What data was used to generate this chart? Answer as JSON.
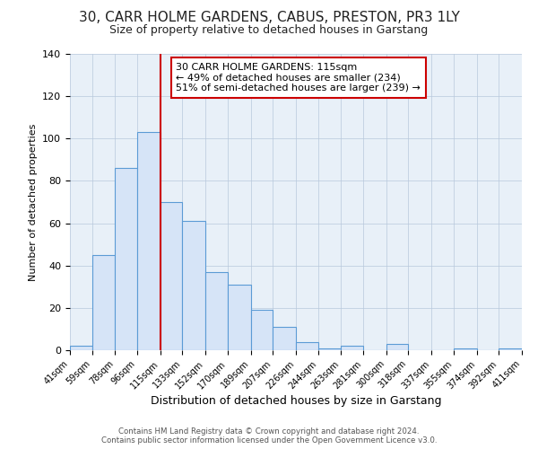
{
  "title": "30, CARR HOLME GARDENS, CABUS, PRESTON, PR3 1LY",
  "subtitle": "Size of property relative to detached houses in Garstang",
  "xlabel": "Distribution of detached houses by size in Garstang",
  "ylabel": "Number of detached properties",
  "bin_edges": [
    41,
    59,
    78,
    96,
    115,
    133,
    152,
    170,
    189,
    207,
    226,
    244,
    263,
    281,
    300,
    318,
    337,
    355,
    374,
    392,
    411
  ],
  "bin_counts": [
    2,
    45,
    86,
    103,
    70,
    61,
    37,
    31,
    19,
    11,
    4,
    1,
    2,
    0,
    3,
    0,
    0,
    1,
    0,
    1
  ],
  "bar_facecolor": "#d6e4f7",
  "bar_edgecolor": "#5b9bd5",
  "vline_x": 115,
  "vline_color": "#cc0000",
  "annotation_line1": "30 CARR HOLME GARDENS: 115sqm",
  "annotation_line2": "← 49% of detached houses are smaller (234)",
  "annotation_line3": "51% of semi-detached houses are larger (239) →",
  "annotation_box_edgecolor": "#cc0000",
  "ylim": [
    0,
    140
  ],
  "yticks": [
    0,
    20,
    40,
    60,
    80,
    100,
    120,
    140
  ],
  "bg_color": "#e8f0f8",
  "footer_text": "Contains HM Land Registry data © Crown copyright and database right 2024.\nContains public sector information licensed under the Open Government Licence v3.0.",
  "title_fontsize": 11,
  "subtitle_fontsize": 9,
  "annotation_fontsize": 8,
  "xlabel_fontsize": 9,
  "ylabel_fontsize": 8
}
